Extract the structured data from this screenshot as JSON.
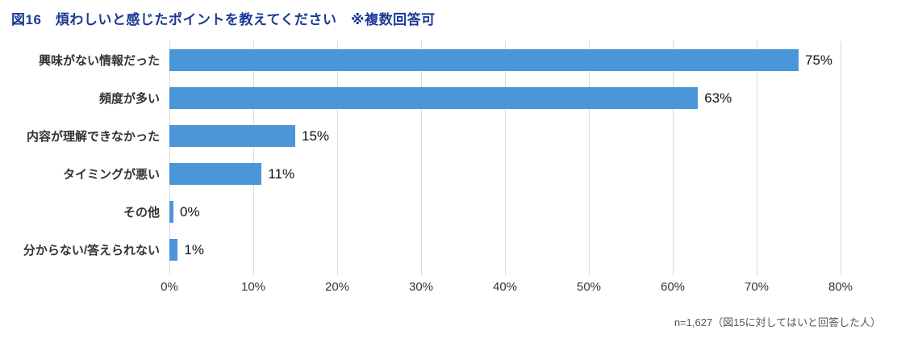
{
  "chart_data": {
    "type": "bar",
    "orientation": "horizontal",
    "title": "図16　煩わしいと感じたポイントを教えてください　※複数回答可",
    "categories": [
      "興味がない情報だった",
      "頻度が多い",
      "内容が理解できなかった",
      "タイミングが悪い",
      "その他",
      "分からない/答えられない"
    ],
    "values": [
      75,
      63,
      15,
      11,
      0,
      1
    ],
    "value_labels": [
      "75%",
      "63%",
      "15%",
      "11%",
      "0%",
      "1%"
    ],
    "xlim": [
      0,
      80
    ],
    "x_ticks": [
      "0%",
      "10%",
      "20%",
      "30%",
      "40%",
      "50%",
      "60%",
      "70%",
      "80%"
    ],
    "bar_color": "#4a96d9",
    "grid": true,
    "legend": "none",
    "footnote": "n=1,627（図15に対してはいと回答した人）"
  }
}
